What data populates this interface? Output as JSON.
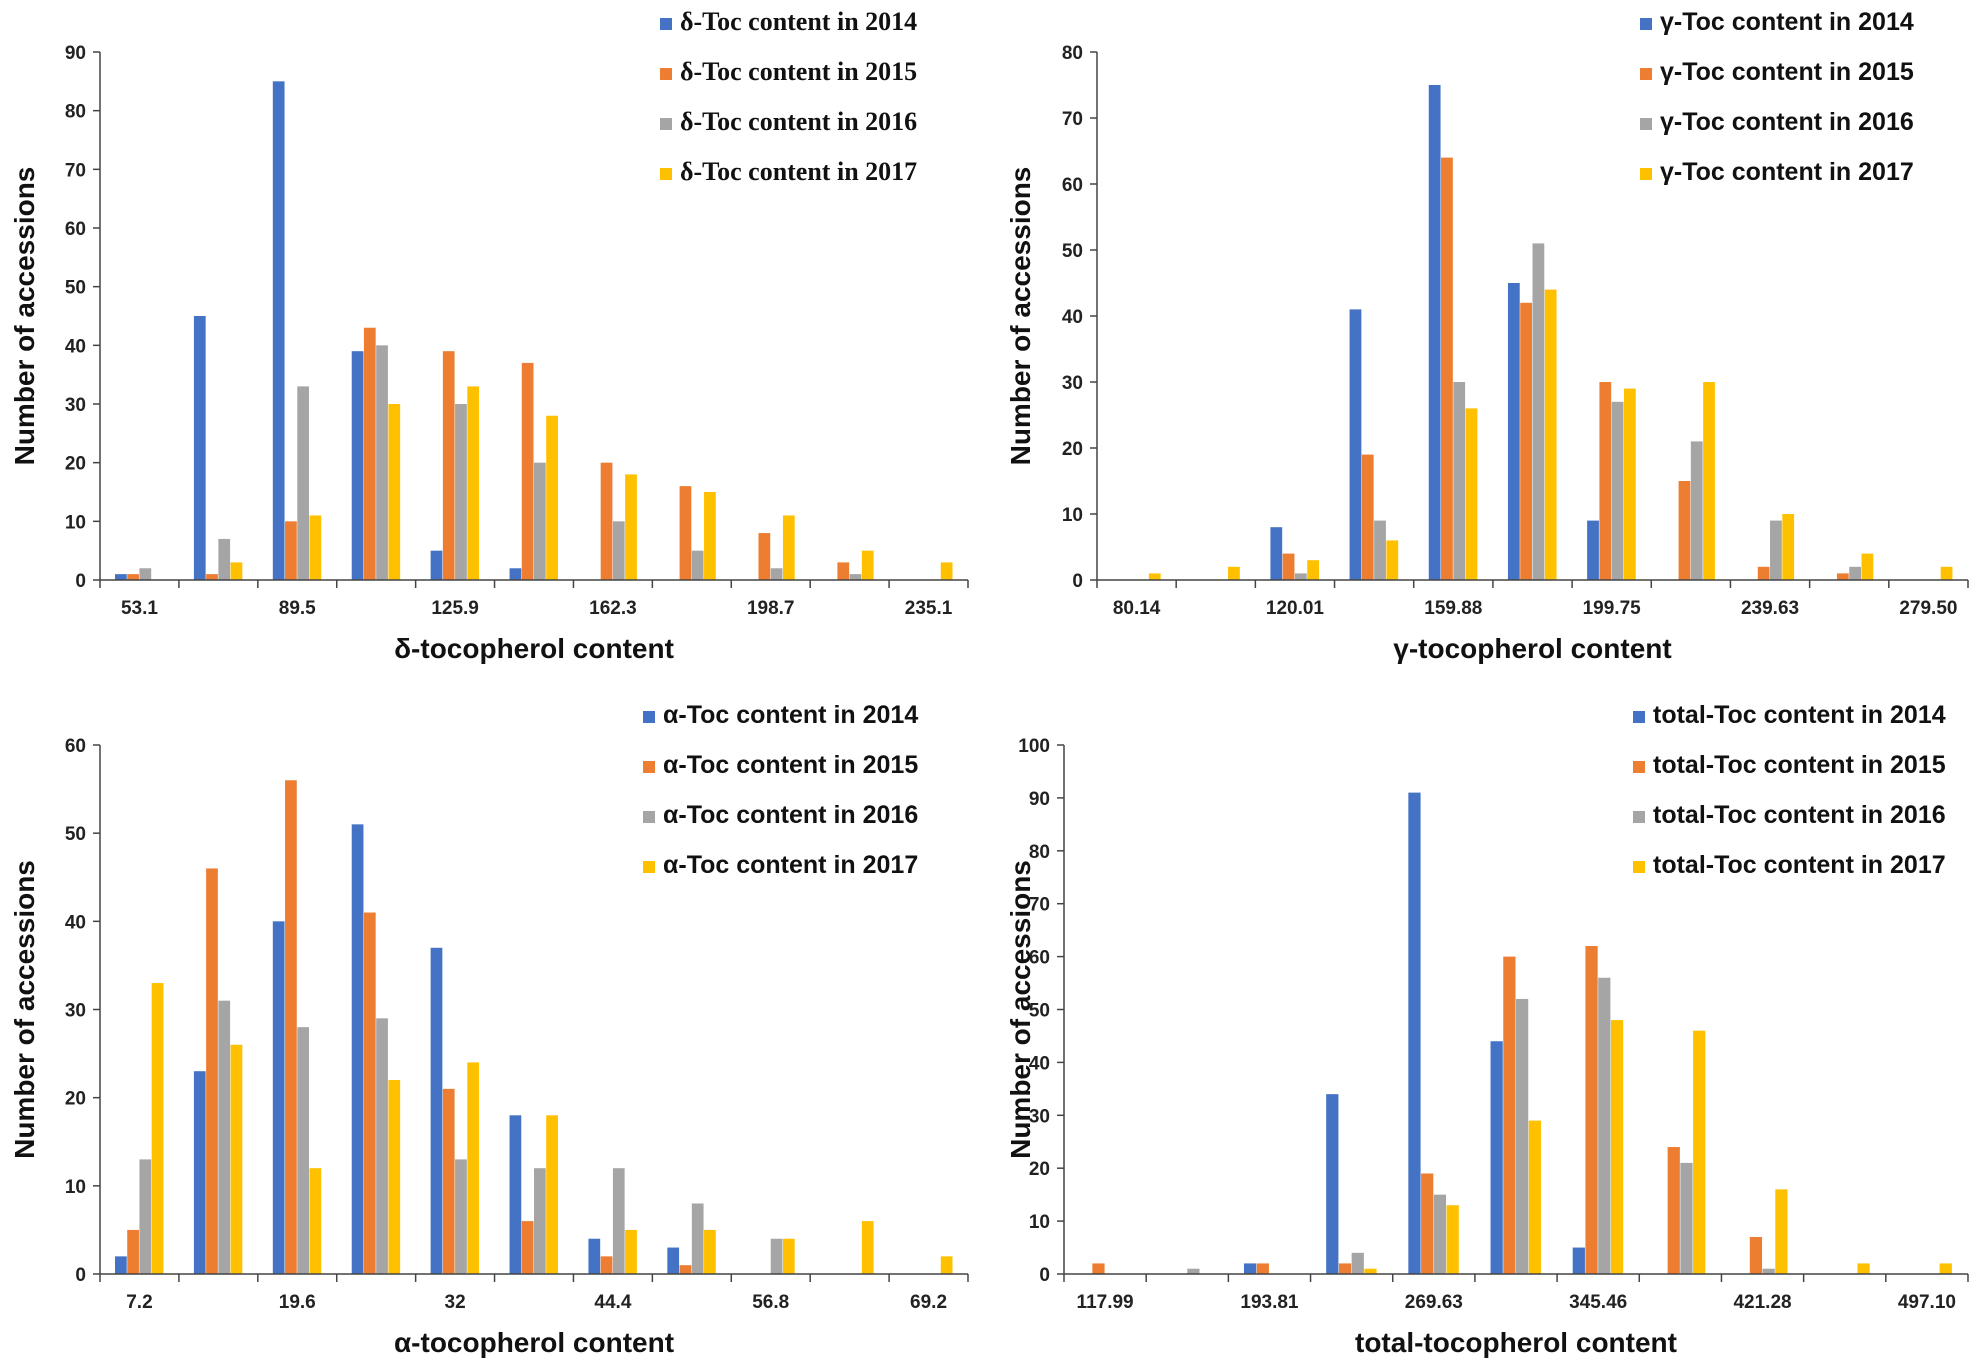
{
  "chart_data": [
    {
      "type": "bar",
      "id": "delta",
      "xlabel": "δ-tocopherol  content",
      "ylabel": "Number of accessions",
      "ylim": [
        0,
        90
      ],
      "yticks": [
        0,
        10,
        20,
        30,
        40,
        50,
        60,
        70,
        80,
        90
      ],
      "num_bins": 11,
      "x_tick_labels": [
        {
          "bin": 0,
          "text": "53.1"
        },
        {
          "bin": 2,
          "text": "89.5"
        },
        {
          "bin": 4,
          "text": "125.9"
        },
        {
          "bin": 6,
          "text": "162.3"
        },
        {
          "bin": 8,
          "text": "198.7"
        },
        {
          "bin": 10,
          "text": "235.1"
        }
      ],
      "legend_position": "top-right",
      "series": [
        {
          "name": "δ-Toc content in 2014",
          "color": "#4472C4",
          "values": [
            1,
            45,
            85,
            39,
            5,
            2,
            0,
            0,
            0,
            0,
            0
          ]
        },
        {
          "name": "δ-Toc content in 2015",
          "color": "#ED7D31",
          "values": [
            1,
            1,
            10,
            43,
            39,
            37,
            20,
            16,
            8,
            3,
            0
          ]
        },
        {
          "name": "δ-Toc content in 2016",
          "color": "#A5A5A5",
          "values": [
            2,
            7,
            33,
            40,
            30,
            20,
            10,
            5,
            2,
            1,
            0
          ]
        },
        {
          "name": "δ-Toc content in 2017",
          "color": "#FFC000",
          "values": [
            0,
            3,
            11,
            30,
            33,
            28,
            18,
            15,
            11,
            5,
            3
          ]
        }
      ]
    },
    {
      "type": "bar",
      "id": "gamma",
      "xlabel": "γ-tocopherol  content",
      "ylabel": "Number of accessions",
      "ylim": [
        0,
        80
      ],
      "yticks": [
        0,
        10,
        20,
        30,
        40,
        50,
        60,
        70,
        80
      ],
      "num_bins": 11,
      "x_tick_labels": [
        {
          "bin": 0,
          "text": "80.14"
        },
        {
          "bin": 2,
          "text": "120.01"
        },
        {
          "bin": 4,
          "text": "159.88"
        },
        {
          "bin": 6,
          "text": "199.75"
        },
        {
          "bin": 8,
          "text": "239.63"
        },
        {
          "bin": 10,
          "text": "279.50"
        }
      ],
      "legend_position": "top-right",
      "series": [
        {
          "name": "γ-Toc content in 2014",
          "color": "#4472C4",
          "values": [
            0,
            0,
            8,
            41,
            75,
            45,
            9,
            0,
            0,
            0,
            0
          ]
        },
        {
          "name": "γ-Toc content in 2015",
          "color": "#ED7D31",
          "values": [
            0,
            0,
            4,
            19,
            64,
            42,
            30,
            15,
            2,
            1,
            0
          ]
        },
        {
          "name": "γ-Toc content in 2016",
          "color": "#A5A5A5",
          "values": [
            0,
            0,
            1,
            9,
            30,
            51,
            27,
            21,
            9,
            2,
            0
          ]
        },
        {
          "name": "γ-Toc content in 2017",
          "color": "#FFC000",
          "values": [
            1,
            2,
            3,
            6,
            26,
            44,
            29,
            30,
            10,
            4,
            2
          ]
        }
      ]
    },
    {
      "type": "bar",
      "id": "alpha",
      "xlabel": "α-tocopherol  content",
      "ylabel": "Number of accessions",
      "ylim": [
        0,
        60
      ],
      "yticks": [
        0,
        10,
        20,
        30,
        40,
        50,
        60
      ],
      "num_bins": 11,
      "x_tick_labels": [
        {
          "bin": 0,
          "text": "7.2"
        },
        {
          "bin": 2,
          "text": "19.6"
        },
        {
          "bin": 4,
          "text": "32"
        },
        {
          "bin": 6,
          "text": "44.4"
        },
        {
          "bin": 8,
          "text": "56.8"
        },
        {
          "bin": 10,
          "text": "69.2"
        }
      ],
      "legend_position": "top-right",
      "series": [
        {
          "name": "α-Toc content in 2014",
          "color": "#4472C4",
          "values": [
            2,
            23,
            40,
            51,
            37,
            18,
            4,
            3,
            0,
            0,
            0
          ]
        },
        {
          "name": "α-Toc content in 2015",
          "color": "#ED7D31",
          "values": [
            5,
            46,
            56,
            41,
            21,
            6,
            2,
            1,
            0,
            0,
            0
          ]
        },
        {
          "name": "α-Toc content in 2016",
          "color": "#A5A5A5",
          "values": [
            13,
            31,
            28,
            29,
            13,
            12,
            12,
            8,
            4,
            0,
            0
          ]
        },
        {
          "name": "α-Toc content in 2017",
          "color": "#FFC000",
          "values": [
            33,
            26,
            12,
            22,
            24,
            18,
            5,
            5,
            4,
            6,
            2
          ]
        }
      ]
    },
    {
      "type": "bar",
      "id": "total",
      "xlabel": "total-tocopherol  content",
      "ylabel": "Number of accessions",
      "ylim": [
        0,
        100
      ],
      "yticks": [
        0,
        10,
        20,
        30,
        40,
        50,
        60,
        70,
        80,
        90,
        100
      ],
      "num_bins": 11,
      "x_tick_labels": [
        {
          "bin": 0,
          "text": "117.99"
        },
        {
          "bin": 2,
          "text": "193.81"
        },
        {
          "bin": 4,
          "text": "269.63"
        },
        {
          "bin": 6,
          "text": "345.46"
        },
        {
          "bin": 8,
          "text": "421.28"
        },
        {
          "bin": 10,
          "text": "497.10"
        }
      ],
      "legend_position": "top-right",
      "series": [
        {
          "name": "total-Toc content in 2014",
          "color": "#4472C4",
          "values": [
            0,
            0,
            2,
            34,
            91,
            44,
            5,
            0,
            0,
            0,
            0
          ]
        },
        {
          "name": "total-Toc content in 2015",
          "color": "#ED7D31",
          "values": [
            2,
            0,
            2,
            2,
            19,
            60,
            62,
            24,
            7,
            0,
            0
          ]
        },
        {
          "name": "total-Toc content in 2016",
          "color": "#A5A5A5",
          "values": [
            0,
            1,
            0,
            4,
            15,
            52,
            56,
            21,
            1,
            0,
            0
          ]
        },
        {
          "name": "total-Toc content in 2017",
          "color": "#FFC000",
          "values": [
            0,
            0,
            0,
            1,
            13,
            29,
            48,
            46,
            16,
            2,
            2
          ]
        }
      ]
    }
  ]
}
